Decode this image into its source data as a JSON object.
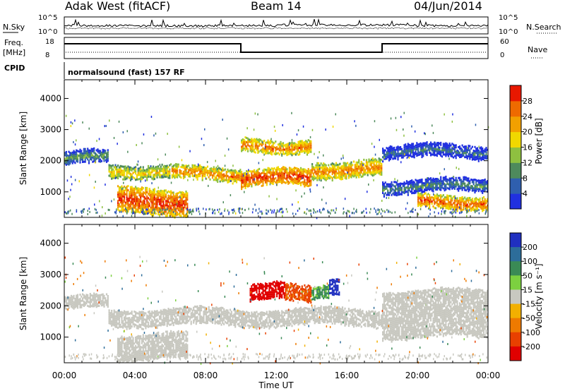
{
  "header": {
    "site": "Adak West (fitACF)",
    "beam": "Beam 14",
    "date": "04/Jun/2014"
  },
  "noise": {
    "left_label": "N.Sky",
    "right_label": "N.Search",
    "tick_hi": "10^5",
    "tick_lo": "10^0"
  },
  "freq": {
    "left_label_1": "Freq.",
    "left_label_2": "[MHz]",
    "tick_hi": "18",
    "tick_lo": "8",
    "right_label": "Nave",
    "right_tick_hi": "60",
    "right_tick_lo": "0"
  },
  "cpid": {
    "label": "CPID",
    "text": "normalsound (fast) 157 RF"
  },
  "axes": {
    "ylabel": "Slant Range [km]",
    "xlabel": "Time UT",
    "yticks": [
      "1000",
      "2000",
      "3000",
      "4000"
    ],
    "xticks": [
      "00:00",
      "04:00",
      "08:00",
      "12:00",
      "16:00",
      "20:00",
      "00:00"
    ]
  },
  "power_scale": {
    "label": "Power [dB]",
    "ticks": [
      "4",
      "8",
      "12",
      "16",
      "20",
      "24",
      "28"
    ],
    "colors": [
      "#2030e0",
      "#2f5fae",
      "#4e8a5c",
      "#8ec040",
      "#f0d800",
      "#f2a000",
      "#ee6a00",
      "#e81800"
    ]
  },
  "velocity_scale": {
    "label": "Velocity [m s⁻¹]",
    "ticks": [
      "200",
      "100",
      "50",
      "15",
      "-15",
      "-50",
      "-100",
      "-200"
    ],
    "colors": [
      "#2030c0",
      "#2d6d9a",
      "#3a8a55",
      "#7cd040",
      "#c8c8c0",
      "#f2b000",
      "#ee7a00",
      "#e84000",
      "#e00000"
    ]
  },
  "chart_data": [
    {
      "type": "heatmap",
      "title": "Power",
      "xlabel": "Time UT",
      "ylabel": "Slant Range [km]",
      "xlim": [
        "00:00",
        "24:00"
      ],
      "ylim": [
        180,
        4600
      ],
      "colorbar": {
        "label": "Power [dB]",
        "range": [
          0,
          30
        ]
      },
      "bands": [
        {
          "t0": 0.0,
          "t1": 2.5,
          "r0": 1900,
          "r1": 2300,
          "value": 10
        },
        {
          "t0": 2.5,
          "t1": 6.0,
          "r0": 1500,
          "r1": 1900,
          "value": 18
        },
        {
          "t0": 6.0,
          "t1": 10.0,
          "r0": 1400,
          "r1": 1800,
          "value": 22
        },
        {
          "t0": 10.0,
          "t1": 14.0,
          "r0": 1200,
          "r1": 1700,
          "value": 26
        },
        {
          "t0": 14.0,
          "t1": 18.0,
          "r0": 1500,
          "r1": 2000,
          "value": 22
        },
        {
          "t0": 3.0,
          "t1": 7.0,
          "r0": 300,
          "r1": 1100,
          "value": 26
        },
        {
          "t0": 10.0,
          "t1": 14.0,
          "r0": 2300,
          "r1": 2700,
          "value": 22
        },
        {
          "t0": 18.0,
          "t1": 24.0,
          "r0": 1000,
          "r1": 1400,
          "value": 8
        },
        {
          "t0": 18.0,
          "t1": 24.0,
          "r0": 2100,
          "r1": 2500,
          "value": 6
        },
        {
          "t0": 20.0,
          "t1": 24.0,
          "r0": 500,
          "r1": 900,
          "value": 24
        }
      ]
    },
    {
      "type": "heatmap",
      "title": "Velocity",
      "xlabel": "Time UT",
      "ylabel": "Slant Range [km]",
      "xlim": [
        "00:00",
        "24:00"
      ],
      "ylim": [
        180,
        4600
      ],
      "colorbar": {
        "label": "Velocity [m s⁻¹]",
        "range": [
          -200,
          200
        ]
      },
      "bands": [
        {
          "t0": 0.0,
          "t1": 2.5,
          "r0": 1900,
          "r1": 2300,
          "value": 0
        },
        {
          "t0": 2.5,
          "t1": 18.0,
          "r0": 1400,
          "r1": 1900,
          "value": 0
        },
        {
          "t0": 3.0,
          "t1": 7.0,
          "r0": 300,
          "r1": 1100,
          "value": 0
        },
        {
          "t0": 10.5,
          "t1": 12.5,
          "r0": 2200,
          "r1": 2700,
          "value": -200
        },
        {
          "t0": 12.5,
          "t1": 14.0,
          "r0": 2200,
          "r1": 2700,
          "value": -90
        },
        {
          "t0": 14.0,
          "t1": 15.0,
          "r0": 2300,
          "r1": 2700,
          "value": 40
        },
        {
          "t0": 15.0,
          "t1": 15.6,
          "r0": 2300,
          "r1": 2800,
          "value": 180
        },
        {
          "t0": 18.0,
          "t1": 24.0,
          "r0": 1000,
          "r1": 2500,
          "value": 0
        }
      ]
    },
    {
      "type": "line",
      "title": "Frequency",
      "xlabel": "Time UT",
      "ylabel": "Freq. [MHz]",
      "ylim": [
        8,
        18
      ],
      "x": [
        "00:00",
        "10:00",
        "10:00",
        "18:00",
        "18:00",
        "24:00"
      ],
      "y": [
        15,
        15,
        11,
        11,
        15,
        15
      ]
    }
  ]
}
